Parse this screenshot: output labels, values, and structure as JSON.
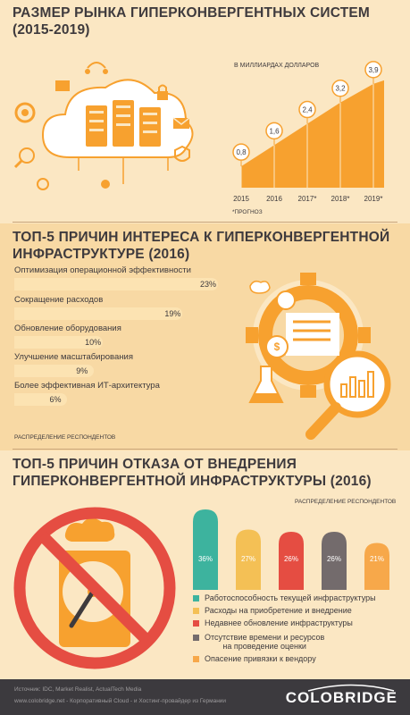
{
  "section1": {
    "title_line1": "РАЗМЕР РЫНКА ГИПЕРКОНВЕРГЕНТНЫХ СИСТЕМ",
    "title_line2": "(2015-2019)"
  },
  "section2": {
    "title_line1": "ТОП-5 ПРИЧИН ИНТЕРЕСА К ГИПЕРКОНВЕРГЕНТНОЙ",
    "title_line2": "ИНФРАСТРУКТУРЕ (2016)"
  },
  "section3": {
    "title_line1": "ТОП-5 ПРИЧИН ОТКАЗА ОТ ВНЕДРЕНИЯ",
    "title_line2": "ГИПЕРКОНВЕРГЕНТНОЙ ИНФРАСТРУКТУРЫ (2016)"
  },
  "footer": {
    "sources": "Источник: IDC, Market Realist, ActualTech Media",
    "links": "www.colobridge.net - Корпоративный Cloud - и Хостинг-провайдер из Германии",
    "brand": "COLOBRIDGE"
  },
  "colors": {
    "orange": "#F7A12F",
    "orange_light": "#FCE3B2",
    "dark": "#3E3A3D",
    "teal": "#3DB39E",
    "gold": "#F4C055",
    "red": "#E54D42",
    "gray": "#736B6C",
    "peach": "#F7A84A"
  },
  "chart_data": [
    {
      "type": "area",
      "unit_label": "В МИЛЛИАРДАХ ДОЛЛАРОВ",
      "footnote": "*ПРОГНОЗ",
      "categories": [
        "2015",
        "2016",
        "2017*",
        "2018*",
        "2019*"
      ],
      "value_labels": [
        "0,8",
        "1,6",
        "2,4",
        "3,2",
        "3,9"
      ],
      "values": [
        0.8,
        1.6,
        2.4,
        3.2,
        3.9
      ],
      "ylim": [
        0,
        4.3
      ]
    },
    {
      "type": "bar",
      "orientation": "horizontal",
      "note": "РАСПРЕДЕЛЕНИЕ РЕСПОНДЕНТОВ",
      "categories": [
        "Оптимизация операционной  эффективности",
        "Сокращение расходов",
        "Обновление оборудования",
        "Улучшение масштабирования",
        "Более эффективная ИТ-архитектура"
      ],
      "value_labels": [
        "23%",
        "19%",
        "10%",
        "9%",
        "6%"
      ],
      "values": [
        23,
        19,
        10,
        9,
        6
      ],
      "xlim": [
        0,
        23
      ]
    },
    {
      "type": "bar",
      "note": "РАСПРЕДЕЛЕНИЕ РЕСПОНДЕНТОВ",
      "categories": [
        "Работоспособность текущей инфраструктуры",
        "Расходы на приобретение и внедрение",
        "Недавнее обновление инфраструктуры",
        "Отсутствие времени и ресурсов на проведение оценки",
        "Опасение привязки к вендору"
      ],
      "legend_lines": [
        [
          "Работоспособность текущей инфраструктуры"
        ],
        [
          "Расходы на приобретение и внедрение"
        ],
        [
          "Недавнее обновление инфраструктуры"
        ],
        [
          "Отсутствие времени и ресурсов",
          "на проведение оценки"
        ],
        [
          "Опасение привязки к вендору"
        ]
      ],
      "value_labels": [
        "36%",
        "27%",
        "26%",
        "26%",
        "21%"
      ],
      "values": [
        36,
        27,
        26,
        26,
        21
      ],
      "colors": [
        "#3DB39E",
        "#F4C055",
        "#E54D42",
        "#736B6C",
        "#F7A84A"
      ],
      "legend_position": "bottom"
    }
  ]
}
